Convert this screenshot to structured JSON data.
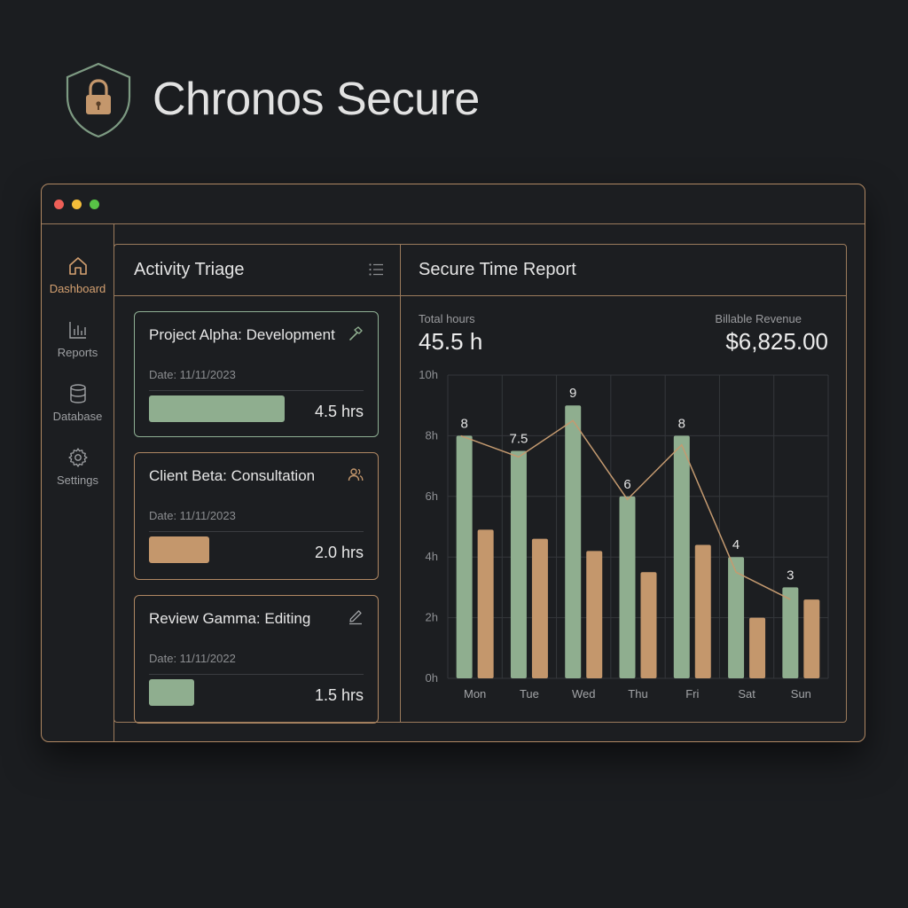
{
  "brand": {
    "title": "Chronos Secure",
    "icon": "lock-shield-icon"
  },
  "window": {
    "controls": [
      "close",
      "minimize",
      "maximize"
    ]
  },
  "sidebar": {
    "items": [
      {
        "label": "Dashboard",
        "icon": "home-icon",
        "active": true
      },
      {
        "label": "Reports",
        "icon": "bar-chart-icon",
        "active": false
      },
      {
        "label": "Database",
        "icon": "database-icon",
        "active": false
      },
      {
        "label": "Settings",
        "icon": "gear-icon",
        "active": false
      }
    ]
  },
  "triage": {
    "title": "Activity Triage",
    "cards": [
      {
        "title": "Project Alpha: Development",
        "date": "Date: 11/11/2023",
        "hours": "4.5 hrs",
        "icon": "hammer-icon",
        "color": "#8fae8f",
        "fraction": 0.9
      },
      {
        "title": "Client Beta: Consultation",
        "date": "Date: 11/11/2023",
        "hours": "2.0 hrs",
        "icon": "users-icon",
        "color": "#c4976c",
        "fraction": 0.4
      },
      {
        "title": "Review Gamma: Editing",
        "date": "Date: 11/11/2022",
        "hours": "1.5 hrs",
        "icon": "pencil-icon",
        "color": "#8fae8f",
        "fraction": 0.3
      }
    ]
  },
  "report": {
    "title": "Secure Time Report",
    "total_label": "Total hours",
    "total_value": "45.5 h",
    "revenue_label": "Billable Revenue",
    "revenue_value": "$6,825.00"
  },
  "chart_data": {
    "type": "bar",
    "categories": [
      "Mon",
      "Tue",
      "Wed",
      "Thu",
      "Fri",
      "Sat",
      "Sun"
    ],
    "series": [
      {
        "values": [
          8,
          7.5,
          9,
          6,
          8,
          4,
          3
        ],
        "color": "#8fae8f",
        "data_labels": [
          "8",
          "7.5",
          "9",
          "6",
          "8",
          "4",
          "3"
        ]
      },
      {
        "values": [
          4.9,
          4.6,
          4.2,
          3.5,
          4.4,
          2.0,
          2.6
        ],
        "color": "#c4976c"
      }
    ],
    "line": {
      "values": [
        8,
        7.3,
        8.5,
        5.9,
        7.7,
        3.5,
        2.6
      ],
      "color": "#c49a70"
    },
    "yticks": [
      0,
      2,
      4,
      6,
      8,
      10
    ],
    "ytick_labels": [
      "0h",
      "2h",
      "4h",
      "6h",
      "8h",
      "10h"
    ],
    "ylim": [
      0,
      10
    ],
    "grid": true
  },
  "colors": {
    "background": "#1b1d20",
    "accent_copper": "#c4976c",
    "accent_sage": "#8fae8f",
    "border": "#9b7b5c"
  }
}
